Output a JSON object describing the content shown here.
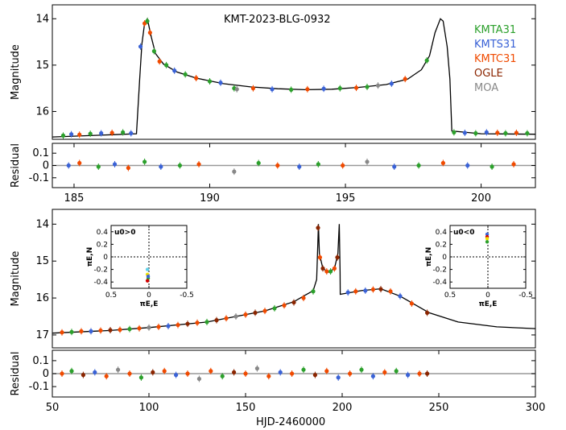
{
  "chart_data": [
    {
      "type": "scatter",
      "panel": "top-lightcurve",
      "title": "KMT-2023-BLG-0932",
      "xlim": [
        184.2,
        202
      ],
      "ylim": [
        16.6,
        13.7
      ],
      "ylabel": "Magnitude",
      "yticks": [
        14,
        15,
        16
      ],
      "grid": false,
      "legend_position": "top-right",
      "series": [
        {
          "name": "KMTA31",
          "color": "#2ca02c"
        },
        {
          "name": "KMTS31",
          "color": "#3a62d6"
        },
        {
          "name": "KMTC31",
          "color": "#f04a00"
        },
        {
          "name": "OGLE",
          "color": "#8b2500"
        },
        {
          "name": "MOA",
          "color": "#888888"
        }
      ],
      "model": [
        [
          184.2,
          16.55
        ],
        [
          186.5,
          16.5
        ],
        [
          187.3,
          16.48
        ],
        [
          187.42,
          15.3
        ],
        [
          187.5,
          14.55
        ],
        [
          187.6,
          14.1
        ],
        [
          187.7,
          14.0
        ],
        [
          187.85,
          14.4
        ],
        [
          188.0,
          14.75
        ],
        [
          188.3,
          14.98
        ],
        [
          188.8,
          15.15
        ],
        [
          189.5,
          15.28
        ],
        [
          190.5,
          15.4
        ],
        [
          191.5,
          15.47
        ],
        [
          192.5,
          15.51
        ],
        [
          193.5,
          15.53
        ],
        [
          194.5,
          15.52
        ],
        [
          195.5,
          15.48
        ],
        [
          196.5,
          15.42
        ],
        [
          197.3,
          15.3
        ],
        [
          197.8,
          15.1
        ],
        [
          198.1,
          14.8
        ],
        [
          198.3,
          14.3
        ],
        [
          198.5,
          14.0
        ],
        [
          198.6,
          14.05
        ],
        [
          198.75,
          14.6
        ],
        [
          198.85,
          15.3
        ],
        [
          198.92,
          16.42
        ],
        [
          200,
          16.48
        ],
        [
          202,
          16.49
        ]
      ],
      "points": [
        {
          "s": 0,
          "x": 184.6,
          "y": 16.52
        },
        {
          "s": 1,
          "x": 184.9,
          "y": 16.49
        },
        {
          "s": 2,
          "x": 185.2,
          "y": 16.5
        },
        {
          "s": 0,
          "x": 185.6,
          "y": 16.48
        },
        {
          "s": 1,
          "x": 186.0,
          "y": 16.47
        },
        {
          "s": 2,
          "x": 186.4,
          "y": 16.46
        },
        {
          "s": 0,
          "x": 186.8,
          "y": 16.45
        },
        {
          "s": 1,
          "x": 187.1,
          "y": 16.47
        },
        {
          "s": 1,
          "x": 187.45,
          "y": 14.6
        },
        {
          "s": 2,
          "x": 187.6,
          "y": 14.1
        },
        {
          "s": 0,
          "x": 187.7,
          "y": 14.05
        },
        {
          "s": 2,
          "x": 187.8,
          "y": 14.3
        },
        {
          "s": 0,
          "x": 187.95,
          "y": 14.7
        },
        {
          "s": 2,
          "x": 188.15,
          "y": 14.92
        },
        {
          "s": 0,
          "x": 188.4,
          "y": 15.0
        },
        {
          "s": 1,
          "x": 188.7,
          "y": 15.12
        },
        {
          "s": 0,
          "x": 189.1,
          "y": 15.2
        },
        {
          "s": 2,
          "x": 189.5,
          "y": 15.28
        },
        {
          "s": 0,
          "x": 190.0,
          "y": 15.35
        },
        {
          "s": 1,
          "x": 190.4,
          "y": 15.38
        },
        {
          "s": 0,
          "x": 190.9,
          "y": 15.5
        },
        {
          "s": 4,
          "x": 191.0,
          "y": 15.52
        },
        {
          "s": 2,
          "x": 191.6,
          "y": 15.5
        },
        {
          "s": 1,
          "x": 192.3,
          "y": 15.52
        },
        {
          "s": 0,
          "x": 193.0,
          "y": 15.53
        },
        {
          "s": 2,
          "x": 193.6,
          "y": 15.52
        },
        {
          "s": 1,
          "x": 194.2,
          "y": 15.51
        },
        {
          "s": 0,
          "x": 194.8,
          "y": 15.5
        },
        {
          "s": 2,
          "x": 195.4,
          "y": 15.49
        },
        {
          "s": 0,
          "x": 195.8,
          "y": 15.47
        },
        {
          "s": 4,
          "x": 196.2,
          "y": 15.44
        },
        {
          "s": 1,
          "x": 196.7,
          "y": 15.4
        },
        {
          "s": 2,
          "x": 197.2,
          "y": 15.3
        },
        {
          "s": 0,
          "x": 198.0,
          "y": 14.9
        },
        {
          "s": 0,
          "x": 199.0,
          "y": 16.45
        },
        {
          "s": 1,
          "x": 199.4,
          "y": 16.46
        },
        {
          "s": 0,
          "x": 199.8,
          "y": 16.47
        },
        {
          "s": 1,
          "x": 200.2,
          "y": 16.45
        },
        {
          "s": 2,
          "x": 200.6,
          "y": 16.46
        },
        {
          "s": 0,
          "x": 200.9,
          "y": 16.47
        },
        {
          "s": 2,
          "x": 201.3,
          "y": 16.46
        },
        {
          "s": 0,
          "x": 201.7,
          "y": 16.47
        }
      ]
    },
    {
      "type": "scatter",
      "panel": "top-residual",
      "ylabel": "Residual",
      "xlim": [
        184.2,
        202
      ],
      "ylim": [
        -0.18,
        0.18
      ],
      "xticks": [
        185,
        190,
        195,
        200
      ],
      "yticks": [
        0.1,
        0,
        -0.1
      ],
      "grid": false,
      "points": [
        {
          "s": 1,
          "x": 184.8,
          "y": 0.0
        },
        {
          "s": 2,
          "x": 185.2,
          "y": 0.02
        },
        {
          "s": 0,
          "x": 185.9,
          "y": -0.01
        },
        {
          "s": 1,
          "x": 186.5,
          "y": 0.01
        },
        {
          "s": 2,
          "x": 187.0,
          "y": -0.02
        },
        {
          "s": 0,
          "x": 187.6,
          "y": 0.03
        },
        {
          "s": 1,
          "x": 188.2,
          "y": -0.01
        },
        {
          "s": 0,
          "x": 188.9,
          "y": 0.0
        },
        {
          "s": 2,
          "x": 189.6,
          "y": 0.01
        },
        {
          "s": 4,
          "x": 190.9,
          "y": -0.05
        },
        {
          "s": 0,
          "x": 191.8,
          "y": 0.02
        },
        {
          "s": 2,
          "x": 192.5,
          "y": 0.0
        },
        {
          "s": 1,
          "x": 193.3,
          "y": -0.01
        },
        {
          "s": 0,
          "x": 194.0,
          "y": 0.01
        },
        {
          "s": 2,
          "x": 194.9,
          "y": 0.0
        },
        {
          "s": 4,
          "x": 195.8,
          "y": 0.03
        },
        {
          "s": 1,
          "x": 196.8,
          "y": -0.01
        },
        {
          "s": 0,
          "x": 197.7,
          "y": 0.0
        },
        {
          "s": 2,
          "x": 198.6,
          "y": 0.02
        },
        {
          "s": 1,
          "x": 199.5,
          "y": 0.0
        },
        {
          "s": 0,
          "x": 200.4,
          "y": -0.01
        },
        {
          "s": 2,
          "x": 201.2,
          "y": 0.01
        }
      ]
    },
    {
      "type": "scatter",
      "panel": "bottom-lightcurve",
      "ylabel": "Magnitude",
      "xlim": [
        50,
        300
      ],
      "ylim": [
        17.35,
        13.6
      ],
      "yticks": [
        14,
        15,
        16,
        17
      ],
      "grid": false,
      "model": [
        [
          50,
          16.95
        ],
        [
          80,
          16.88
        ],
        [
          100,
          16.8
        ],
        [
          130,
          16.65
        ],
        [
          160,
          16.35
        ],
        [
          175,
          16.1
        ],
        [
          185,
          15.8
        ],
        [
          186.8,
          15.5
        ],
        [
          187.4,
          14.5
        ],
        [
          187.7,
          14.0
        ],
        [
          188.2,
          14.8
        ],
        [
          190,
          15.2
        ],
        [
          193,
          15.3
        ],
        [
          196,
          15.2
        ],
        [
          197.8,
          14.8
        ],
        [
          198.5,
          14.0
        ],
        [
          198.9,
          15.3
        ],
        [
          199,
          15.9
        ],
        [
          210,
          15.8
        ],
        [
          220,
          15.75
        ],
        [
          230,
          15.95
        ],
        [
          245,
          16.4
        ],
        [
          260,
          16.65
        ],
        [
          280,
          16.78
        ],
        [
          300,
          16.83
        ]
      ],
      "points": [
        {
          "s": 2,
          "x": 55,
          "y": 16.93
        },
        {
          "s": 0,
          "x": 60,
          "y": 16.92
        },
        {
          "s": 2,
          "x": 65,
          "y": 16.9
        },
        {
          "s": 1,
          "x": 70,
          "y": 16.9
        },
        {
          "s": 2,
          "x": 75,
          "y": 16.88
        },
        {
          "s": 3,
          "x": 80,
          "y": 16.87
        },
        {
          "s": 2,
          "x": 85,
          "y": 16.86
        },
        {
          "s": 0,
          "x": 90,
          "y": 16.84
        },
        {
          "s": 2,
          "x": 95,
          "y": 16.82
        },
        {
          "s": 4,
          "x": 100,
          "y": 16.8
        },
        {
          "s": 2,
          "x": 105,
          "y": 16.78
        },
        {
          "s": 1,
          "x": 110,
          "y": 16.76
        },
        {
          "s": 2,
          "x": 115,
          "y": 16.73
        },
        {
          "s": 3,
          "x": 120,
          "y": 16.7
        },
        {
          "s": 2,
          "x": 125,
          "y": 16.67
        },
        {
          "s": 0,
          "x": 130,
          "y": 16.65
        },
        {
          "s": 3,
          "x": 135,
          "y": 16.6
        },
        {
          "s": 2,
          "x": 140,
          "y": 16.55
        },
        {
          "s": 4,
          "x": 145,
          "y": 16.5
        },
        {
          "s": 2,
          "x": 150,
          "y": 16.45
        },
        {
          "s": 3,
          "x": 155,
          "y": 16.4
        },
        {
          "s": 2,
          "x": 160,
          "y": 16.35
        },
        {
          "s": 0,
          "x": 165,
          "y": 16.28
        },
        {
          "s": 2,
          "x": 170,
          "y": 16.2
        },
        {
          "s": 3,
          "x": 175,
          "y": 16.12
        },
        {
          "s": 2,
          "x": 180,
          "y": 16.0
        },
        {
          "s": 0,
          "x": 185,
          "y": 15.82
        },
        {
          "s": 3,
          "x": 187.5,
          "y": 14.1
        },
        {
          "s": 2,
          "x": 188.5,
          "y": 14.9
        },
        {
          "s": 3,
          "x": 190,
          "y": 15.2
        },
        {
          "s": 2,
          "x": 192,
          "y": 15.28
        },
        {
          "s": 0,
          "x": 194,
          "y": 15.28
        },
        {
          "s": 2,
          "x": 196,
          "y": 15.2
        },
        {
          "s": 3,
          "x": 197.5,
          "y": 14.9
        },
        {
          "s": 1,
          "x": 203,
          "y": 15.85
        },
        {
          "s": 2,
          "x": 207,
          "y": 15.82
        },
        {
          "s": 1,
          "x": 212,
          "y": 15.8
        },
        {
          "s": 2,
          "x": 216,
          "y": 15.77
        },
        {
          "s": 3,
          "x": 220,
          "y": 15.76
        },
        {
          "s": 2,
          "x": 225,
          "y": 15.82
        },
        {
          "s": 1,
          "x": 230,
          "y": 15.95
        },
        {
          "s": 2,
          "x": 236,
          "y": 16.15
        },
        {
          "s": 3,
          "x": 244,
          "y": 16.4
        }
      ]
    },
    {
      "type": "scatter",
      "panel": "bottom-residual",
      "ylabel": "Residual",
      "xlabel": "HJD-2460000",
      "xlim": [
        50,
        300
      ],
      "ylim": [
        -0.18,
        0.18
      ],
      "xticks": [
        50,
        100,
        150,
        200,
        250,
        300
      ],
      "yticks": [
        0.1,
        0,
        -0.1
      ],
      "grid": false,
      "points": [
        {
          "s": 2,
          "x": 55,
          "y": 0.0
        },
        {
          "s": 0,
          "x": 60,
          "y": 0.02
        },
        {
          "s": 3,
          "x": 66,
          "y": -0.01
        },
        {
          "s": 1,
          "x": 72,
          "y": 0.01
        },
        {
          "s": 2,
          "x": 78,
          "y": -0.02
        },
        {
          "s": 4,
          "x": 84,
          "y": 0.03
        },
        {
          "s": 2,
          "x": 90,
          "y": 0.0
        },
        {
          "s": 0,
          "x": 96,
          "y": -0.03
        },
        {
          "s": 3,
          "x": 102,
          "y": 0.01
        },
        {
          "s": 2,
          "x": 108,
          "y": 0.02
        },
        {
          "s": 1,
          "x": 114,
          "y": -0.01
        },
        {
          "s": 2,
          "x": 120,
          "y": 0.0
        },
        {
          "s": 4,
          "x": 126,
          "y": -0.04
        },
        {
          "s": 2,
          "x": 132,
          "y": 0.02
        },
        {
          "s": 0,
          "x": 138,
          "y": -0.02
        },
        {
          "s": 3,
          "x": 144,
          "y": 0.01
        },
        {
          "s": 2,
          "x": 150,
          "y": 0.0
        },
        {
          "s": 4,
          "x": 156,
          "y": 0.04
        },
        {
          "s": 2,
          "x": 162,
          "y": -0.02
        },
        {
          "s": 1,
          "x": 168,
          "y": 0.01
        },
        {
          "s": 2,
          "x": 174,
          "y": 0.0
        },
        {
          "s": 0,
          "x": 180,
          "y": 0.03
        },
        {
          "s": 3,
          "x": 186,
          "y": -0.01
        },
        {
          "s": 2,
          "x": 192,
          "y": 0.02
        },
        {
          "s": 1,
          "x": 198,
          "y": -0.03
        },
        {
          "s": 2,
          "x": 204,
          "y": 0.0
        },
        {
          "s": 0,
          "x": 210,
          "y": 0.03
        },
        {
          "s": 1,
          "x": 216,
          "y": -0.02
        },
        {
          "s": 2,
          "x": 222,
          "y": 0.01
        },
        {
          "s": 0,
          "x": 228,
          "y": 0.02
        },
        {
          "s": 1,
          "x": 234,
          "y": -0.01
        },
        {
          "s": 2,
          "x": 240,
          "y": 0.0
        },
        {
          "s": 3,
          "x": 244,
          "y": 0.0
        }
      ]
    },
    {
      "type": "scatter",
      "panel": "inset-left",
      "label": "u0>0",
      "xlabel": "πE,E",
      "ylabel": "πE,N",
      "xlim": [
        0.5,
        -0.5
      ],
      "ylim": [
        -0.5,
        0.5
      ],
      "xticks": [
        0.5,
        0,
        -0.5
      ],
      "yticks": [
        0.4,
        0.2,
        0,
        -0.2,
        -0.4
      ],
      "points": [
        {
          "x": 0.02,
          "y": -0.2,
          "color": "#5fd0e8"
        },
        {
          "x": 0.02,
          "y": -0.28,
          "color": "#f0e000"
        },
        {
          "x": 0.01,
          "y": -0.34,
          "color": "#2ca02c"
        },
        {
          "x": 0.02,
          "y": -0.38,
          "color": "#d00000"
        },
        {
          "x": 0.01,
          "y": -0.31,
          "color": "#3a62d6"
        }
      ]
    },
    {
      "type": "scatter",
      "panel": "inset-right",
      "label": "u0<0",
      "xlabel": "πE,E",
      "ylabel": "πE,N",
      "xlim": [
        0.5,
        -0.5
      ],
      "ylim": [
        -0.5,
        0.5
      ],
      "xticks": [
        0.5,
        0,
        -0.5
      ],
      "yticks": [
        0.4,
        0.2,
        0,
        -0.2,
        -0.4
      ],
      "points": [
        {
          "x": 0.01,
          "y": 0.36,
          "color": "#3a62d6"
        },
        {
          "x": 0.01,
          "y": 0.32,
          "color": "#d00000"
        },
        {
          "x": 0.01,
          "y": 0.29,
          "color": "#f0e000"
        },
        {
          "x": 0.01,
          "y": 0.24,
          "color": "#2ca02c"
        }
      ]
    }
  ]
}
